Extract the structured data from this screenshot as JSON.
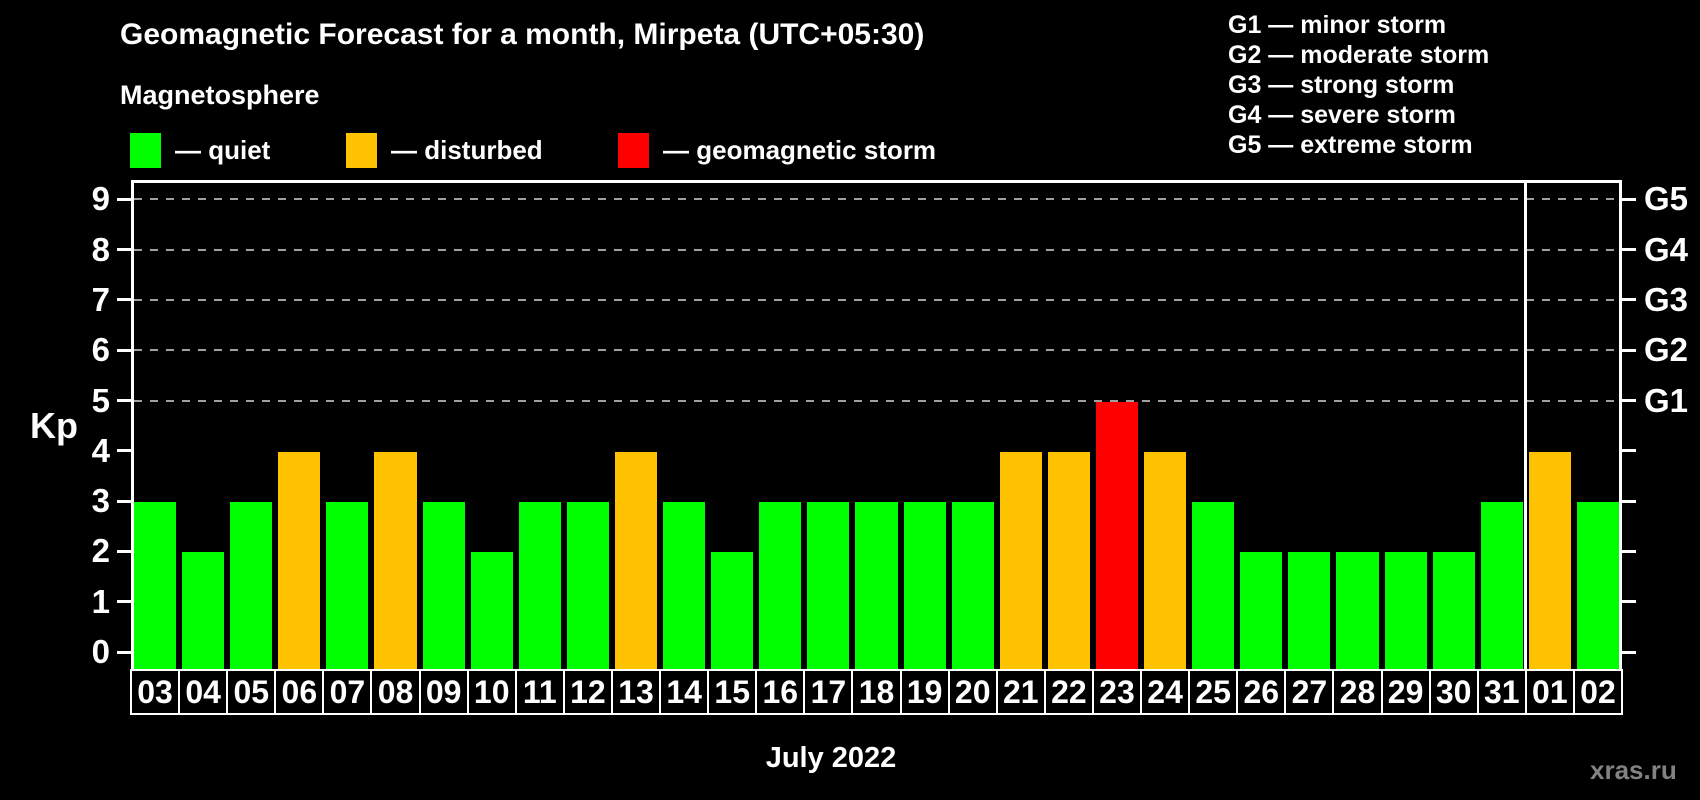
{
  "header": {
    "title": "Geomagnetic Forecast for a month, Mirpeta (UTC+05:30)"
  },
  "legend": {
    "title": "Magnetosphere",
    "items": [
      {
        "status": "quiet",
        "label": "— quiet",
        "color": "#00ff00"
      },
      {
        "status": "disturbed",
        "label": "— disturbed",
        "color": "#ffc200"
      },
      {
        "status": "storm",
        "label": "— geomagnetic storm",
        "color": "#ff0000"
      }
    ]
  },
  "storm_scale": [
    {
      "code": "G1",
      "label": "minor storm",
      "kp": 5
    },
    {
      "code": "G2",
      "label": "moderate storm",
      "kp": 6
    },
    {
      "code": "G3",
      "label": "strong storm",
      "kp": 7
    },
    {
      "code": "G4",
      "label": "severe storm",
      "kp": 8
    },
    {
      "code": "G5",
      "label": "extreme storm",
      "kp": 9
    }
  ],
  "axis": {
    "left_label": "Kp",
    "left_ticks": [
      0,
      1,
      2,
      3,
      4,
      5,
      6,
      7,
      8,
      9
    ]
  },
  "chart_data": {
    "type": "bar",
    "title": "Geomagnetic Forecast for a month, Mirpeta (UTC+05:30)",
    "xlabel": "July 2022",
    "ylabel": "Kp",
    "ylim": [
      0,
      9.4
    ],
    "grid": "dashed horizontal gridlines at Kp 5,6,7,8,9 (G1–G5 levels)",
    "legend_position": "status legend top-left, G-scale legend top-right",
    "categories": [
      "03",
      "04",
      "05",
      "06",
      "07",
      "08",
      "09",
      "10",
      "11",
      "12",
      "13",
      "14",
      "15",
      "16",
      "17",
      "18",
      "19",
      "20",
      "21",
      "22",
      "23",
      "24",
      "25",
      "26",
      "27",
      "28",
      "29",
      "30",
      "31",
      "01",
      "02"
    ],
    "values": [
      3,
      2,
      3,
      4,
      3,
      4,
      3,
      2,
      3,
      3,
      4,
      3,
      2,
      3,
      3,
      3,
      3,
      3,
      4,
      4,
      5,
      4,
      3,
      2,
      2,
      2,
      2,
      2,
      3,
      4,
      3
    ],
    "statuses": [
      "quiet",
      "quiet",
      "quiet",
      "disturbed",
      "quiet",
      "disturbed",
      "quiet",
      "quiet",
      "quiet",
      "quiet",
      "disturbed",
      "quiet",
      "quiet",
      "quiet",
      "quiet",
      "quiet",
      "quiet",
      "quiet",
      "disturbed",
      "disturbed",
      "storm",
      "disturbed",
      "quiet",
      "quiet",
      "quiet",
      "quiet",
      "quiet",
      "quiet",
      "quiet",
      "disturbed",
      "quiet"
    ],
    "colors": {
      "quiet": "#00ff00",
      "disturbed": "#ffc200",
      "storm": "#ff0000"
    },
    "month_boundary_after_index": 28,
    "gridlines_kp": [
      5,
      6,
      7,
      8,
      9
    ]
  },
  "footer": {
    "month_label": "July 2022",
    "watermark": "xras.ru"
  }
}
